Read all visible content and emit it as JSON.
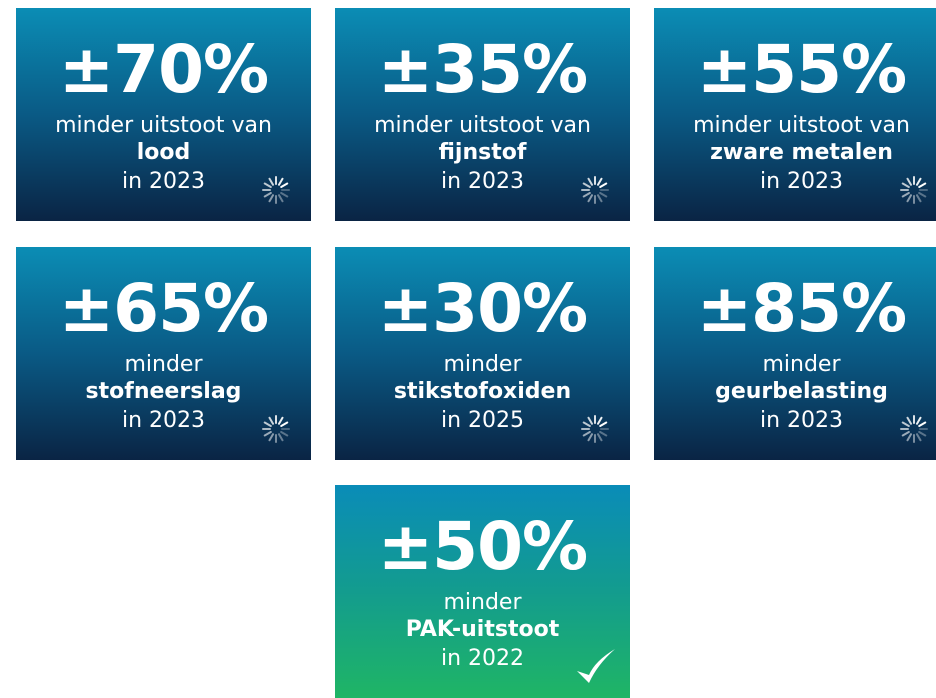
{
  "tiles": [
    {
      "big": "±70%",
      "line1": "minder uitstoot van",
      "bold": "lood",
      "year": "in 2023",
      "status": "pending"
    },
    {
      "big": "±35%",
      "line1": "minder uitstoot van",
      "bold": "fijnstof",
      "year": "in 2023",
      "status": "pending"
    },
    {
      "big": "±55%",
      "line1": "minder uitstoot van",
      "bold": "zware metalen",
      "year": "in 2023",
      "status": "pending"
    },
    {
      "big": "±65%",
      "line1": "minder",
      "bold": "stofneerslag",
      "year": "in 2023",
      "status": "pending"
    },
    {
      "big": "±30%",
      "line1": "minder",
      "bold": "stikstofoxiden",
      "year": "in 2025",
      "status": "pending"
    },
    {
      "big": "±85%",
      "line1": "minder",
      "bold": "geurbelasting",
      "year": "in 2023",
      "status": "pending"
    },
    {
      "big": "±50%",
      "line1": "minder",
      "bold": "PAK-uitstoot",
      "year": "in 2022",
      "status": "done"
    }
  ]
}
